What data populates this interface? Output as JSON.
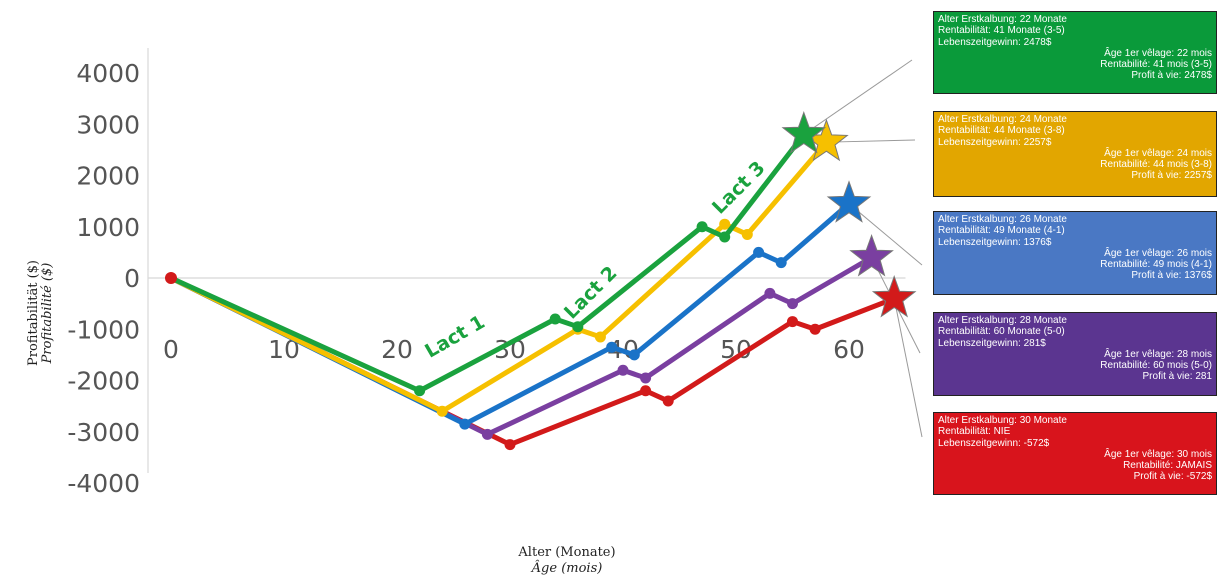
{
  "chart_data": {
    "type": "line",
    "xlabel": "Alter (Monate)",
    "xlabel_fr": "Âge (mois)",
    "ylabel": "Profitabilität ($)",
    "ylabel_fr": "Profitabilité ($)",
    "xlim": [
      0,
      65
    ],
    "ylim": [
      -4000,
      4000
    ],
    "x_ticks": [
      "0",
      "10",
      "20",
      "30",
      "40",
      "50",
      "60"
    ],
    "y_ticks": [
      "4000",
      "3000",
      "2000",
      "1000",
      "0",
      "-1000",
      "-2000",
      "-3000",
      "-4000"
    ],
    "annotations": [
      "Lact 1",
      "Lact 2",
      "Lact 3"
    ],
    "series": [
      {
        "color": "#1aa23e",
        "x": [
          0,
          22,
          34,
          36,
          47,
          49,
          56
        ],
        "y": [
          0,
          -2200,
          -800,
          -950,
          1000,
          800,
          2800
        ],
        "end_marker": "star"
      },
      {
        "color": "#f6c000",
        "x": [
          0,
          24,
          36,
          38,
          49,
          51,
          58
        ],
        "y": [
          0,
          -2600,
          -1000,
          -1150,
          1050,
          850,
          2650
        ],
        "end_marker": "star"
      },
      {
        "color": "#1a73c8",
        "x": [
          0,
          26,
          39,
          41,
          52,
          54,
          60
        ],
        "y": [
          0,
          -2850,
          -1350,
          -1500,
          500,
          300,
          1450
        ],
        "end_marker": "star"
      },
      {
        "color": "#7a3fa0",
        "x": [
          0,
          28,
          40,
          42,
          53,
          55,
          62
        ],
        "y": [
          0,
          -3050,
          -1800,
          -1950,
          -300,
          -500,
          400
        ],
        "end_marker": "star"
      },
      {
        "color": "#d21a1a",
        "x": [
          0,
          30,
          42,
          44,
          55,
          57,
          64
        ],
        "y": [
          0,
          -3250,
          -2200,
          -2400,
          -850,
          -1000,
          -400
        ],
        "end_marker": "star"
      }
    ]
  },
  "legend_boxes": [
    {
      "bg": "#0a9a3a",
      "color": "#ffffff",
      "de": [
        "Alter Erstkalbung: 22 Monate",
        "Rentabilität: 41 Monate (3-5)",
        "Lebenszeitgewinn: 2478$"
      ],
      "fr": [
        "Âge 1er vêlage: 22 mois",
        "Rentabilité: 41 mois (3-5)",
        "Profit à vie: 2478$"
      ]
    },
    {
      "bg": "#e2a600",
      "color": "#ffffff",
      "de": [
        "Alter Erstkalbung: 24 Monate",
        "Rentabilität: 44 Monate (3-8)",
        "Lebenszeitgewinn: 2257$"
      ],
      "fr": [
        "Âge 1er vêlage: 24 mois",
        "Rentabilité: 44 mois (3-8)",
        "Profit à vie: 2257$"
      ]
    },
    {
      "bg": "#4a78c4",
      "color": "#ffffff",
      "de": [
        "Alter Erstkalbung: 26 Monate",
        "Rentabilität: 49 Monate (4-1)",
        "Lebenszeitgewinn: 1376$"
      ],
      "fr": [
        "Âge 1er vêlage: 26 mois",
        "Rentabilité: 49 mois (4-1)",
        "Profit à vie: 1376$"
      ]
    },
    {
      "bg": "#5b3590",
      "color": "#ffffff",
      "de": [
        "Alter Erstkalbung: 28 Monate",
        "Rentabilität: 60 Monate (5-0)",
        "Lebenszeitgewinn: 281$"
      ],
      "fr": [
        "Âge 1er vêlage: 28 mois",
        "Rentabilité: 60 mois (5-0)",
        "Profit à vie: 281"
      ]
    },
    {
      "bg": "#d8141c",
      "color": "#ffffff",
      "de": [
        "Alter Erstkalbung: 30 Monate",
        "Rentabilität: NIE",
        "Lebenszeitgewinn: -572$"
      ],
      "fr": [
        "Âge 1er vêlage: 30 mois",
        "Rentabilité: JAMAIS",
        "Profit à vie: -572$"
      ]
    }
  ]
}
